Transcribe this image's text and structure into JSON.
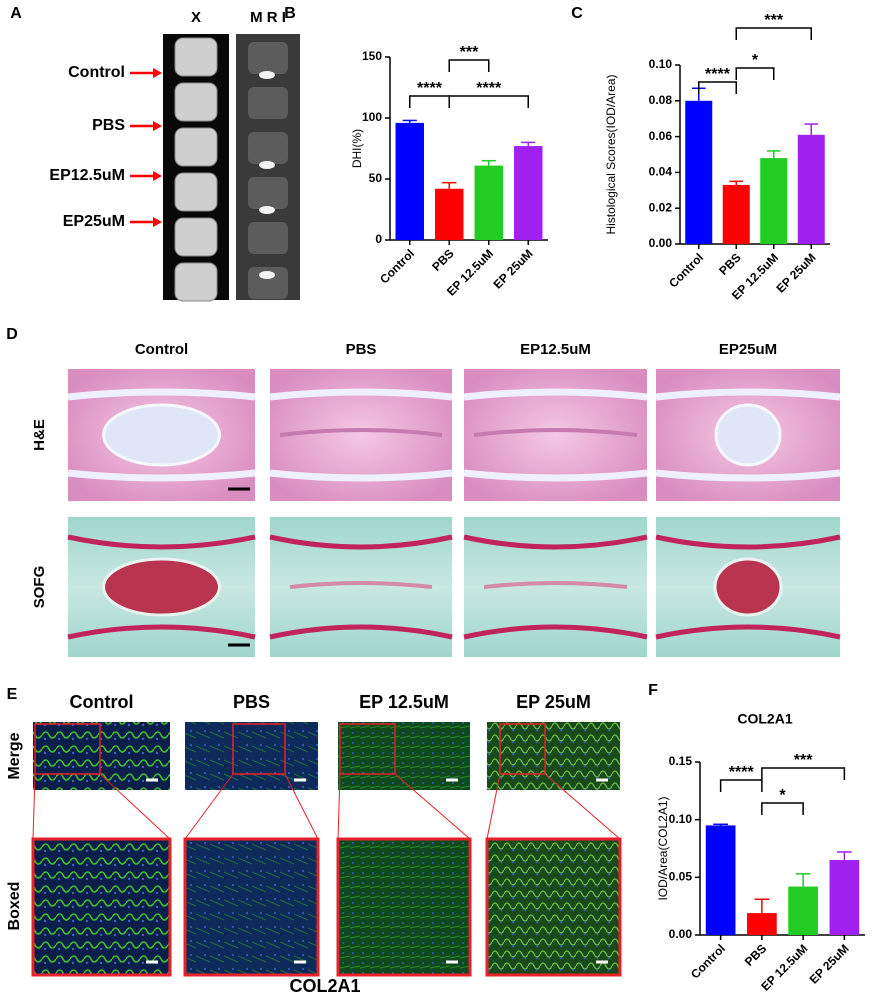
{
  "panel_a": {
    "label": "A",
    "headers": [
      "X",
      "M R I"
    ],
    "rows": [
      "Control",
      "PBS",
      "EP12.5uM",
      "EP25uM"
    ]
  },
  "chart_data": [
    {
      "type": "bar",
      "panel_label": "B",
      "ylabel": "DHI(%)",
      "categories": [
        "Control",
        "PBS",
        "EP 12.5uM",
        "EP 25uM"
      ],
      "values": [
        96,
        42,
        61,
        77
      ],
      "errors": [
        2,
        5,
        4,
        3
      ],
      "colors": [
        "#0000ff",
        "#ff0000",
        "#22cc22",
        "#a020f0"
      ],
      "ylim": [
        0,
        150
      ],
      "yticks": [
        0,
        50,
        100,
        150
      ],
      "annotations": [
        "****",
        "***",
        "****"
      ]
    },
    {
      "type": "bar",
      "panel_label": "C",
      "ylabel": "Histological Scores(IOD/Area)",
      "categories": [
        "Control",
        "PBS",
        "EP 12.5uM",
        "EP 25uM"
      ],
      "values": [
        0.08,
        0.033,
        0.048,
        0.061
      ],
      "errors": [
        0.007,
        0.002,
        0.004,
        0.006
      ],
      "colors": [
        "#0000ff",
        "#ff0000",
        "#22cc22",
        "#a020f0"
      ],
      "ylim": [
        0,
        0.1
      ],
      "yticks": [
        {
          "value": 0,
          "label": "0.00"
        },
        {
          "value": 0.02,
          "label": "0.02"
        },
        {
          "value": 0.04,
          "label": "0.04"
        },
        {
          "value": 0.06,
          "label": "0.06"
        },
        {
          "value": 0.08,
          "label": "0.08"
        },
        {
          "value": 0.1,
          "label": "0.10"
        }
      ],
      "annotations": [
        "****",
        "*",
        "***"
      ]
    },
    {
      "type": "bar",
      "panel_label": "F",
      "title": "COL2A1",
      "ylabel": "IOD/Area(COL2A1)",
      "categories": [
        "Control",
        "PBS",
        "EP 12.5uM",
        "EP 25uM"
      ],
      "values": [
        0.095,
        0.019,
        0.042,
        0.065
      ],
      "errors": [
        0.001,
        0.012,
        0.011,
        0.007
      ],
      "colors": [
        "#0000ff",
        "#ff0000",
        "#22cc22",
        "#a020f0"
      ],
      "ylim": [
        0,
        0.15
      ],
      "yticks": [
        {
          "value": 0,
          "label": "0.00"
        },
        {
          "value": 0.05,
          "label": "0.05"
        },
        {
          "value": 0.1,
          "label": "0.10"
        },
        {
          "value": 0.15,
          "label": "0.15"
        }
      ],
      "annotations": [
        "****",
        "*",
        "***"
      ]
    }
  ],
  "panel_d": {
    "label": "D",
    "columns": [
      "Control",
      "PBS",
      "EP12.5uM",
      "EP25uM"
    ],
    "rows": [
      "H&E",
      "SOFG"
    ]
  },
  "panel_e": {
    "label": "E",
    "columns": [
      "Control",
      "PBS",
      "EP 12.5uM",
      "EP 25uM"
    ],
    "rows": [
      "Merge",
      "Boxed"
    ],
    "caption": "COL2A1"
  }
}
